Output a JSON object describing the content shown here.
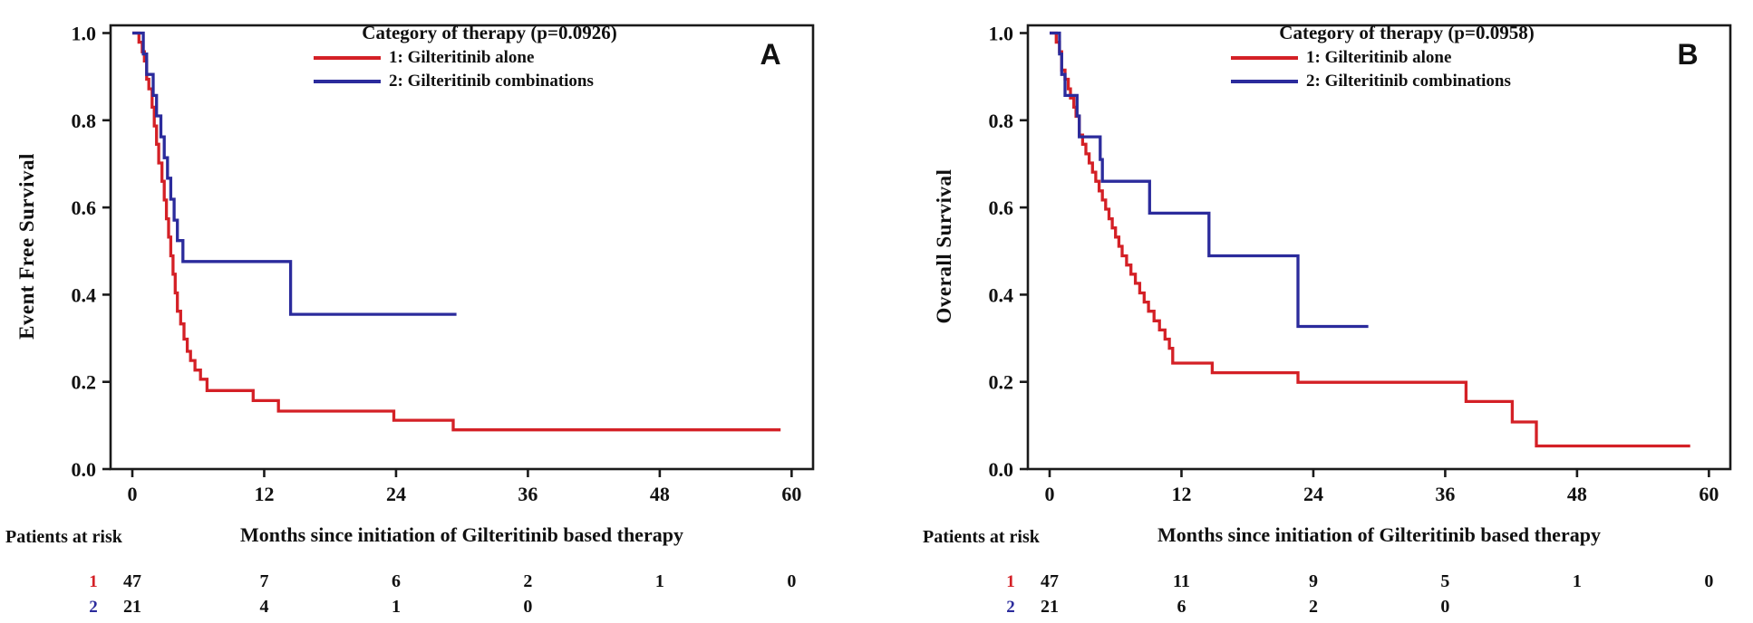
{
  "figure": {
    "background": "#ffffff",
    "axis_color": "#1a1a1a",
    "text_color": "#111111"
  },
  "chart_data": {
    "type": "line",
    "subtype": "kaplan-meier-step",
    "xlabel_shared": "Months since initiation of Gilteritinib based therapy",
    "charts": [
      {
        "id": "A",
        "panel_label": "A",
        "title": "Category of therapy  (p=0.0926)",
        "ylabel": "Event Free Survival",
        "xlabel": "Months since initiation of Gilteritinib based therapy",
        "xticks": [
          0,
          12,
          24,
          36,
          48,
          60
        ],
        "yticks": [
          0.0,
          0.2,
          0.4,
          0.6,
          0.8,
          1.0
        ],
        "xlim": [
          -2,
          62
        ],
        "ylim": [
          0.0,
          1.0
        ],
        "grid": false,
        "legend_position": "top-center-inside",
        "series": [
          {
            "name": "1: Gilteritinib alone",
            "color": "#d42026",
            "steps": [
              [
                0,
                1.0
              ],
              [
                0.6,
                0.979
              ],
              [
                0.9,
                0.957
              ],
              [
                1.1,
                0.936
              ],
              [
                1.3,
                0.894
              ],
              [
                1.5,
                0.872
              ],
              [
                1.8,
                0.83
              ],
              [
                2.0,
                0.787
              ],
              [
                2.2,
                0.745
              ],
              [
                2.4,
                0.702
              ],
              [
                2.7,
                0.66
              ],
              [
                2.9,
                0.617
              ],
              [
                3.1,
                0.574
              ],
              [
                3.3,
                0.532
              ],
              [
                3.5,
                0.489
              ],
              [
                3.7,
                0.447
              ],
              [
                3.9,
                0.404
              ],
              [
                4.1,
                0.362
              ],
              [
                4.4,
                0.333
              ],
              [
                4.7,
                0.298
              ],
              [
                5.0,
                0.27
              ],
              [
                5.3,
                0.249
              ],
              [
                5.7,
                0.227
              ],
              [
                6.2,
                0.206
              ],
              [
                6.8,
                0.18
              ],
              [
                11.0,
                0.157
              ],
              [
                13.3,
                0.133
              ],
              [
                23.8,
                0.112
              ],
              [
                29.2,
                0.09
              ],
              [
                59.0,
                0.09
              ]
            ]
          },
          {
            "name": "2: Gilteritinib combinations",
            "color": "#2b2b9c",
            "steps": [
              [
                0,
                1.0
              ],
              [
                1.0,
                0.952
              ],
              [
                1.3,
                0.905
              ],
              [
                1.9,
                0.857
              ],
              [
                2.2,
                0.81
              ],
              [
                2.6,
                0.762
              ],
              [
                2.9,
                0.714
              ],
              [
                3.2,
                0.667
              ],
              [
                3.5,
                0.619
              ],
              [
                3.8,
                0.571
              ],
              [
                4.1,
                0.524
              ],
              [
                4.6,
                0.476
              ],
              [
                14.4,
                0.355
              ],
              [
                29.5,
                0.355
              ]
            ]
          }
        ],
        "risk_table": {
          "label": "Patients at risk",
          "months": [
            0,
            12,
            24,
            36,
            48,
            60
          ],
          "rows": [
            {
              "marker": "1",
              "color": "#d42026",
              "values": [
                "47",
                "7",
                "6",
                "2",
                "1",
                "0"
              ]
            },
            {
              "marker": "2",
              "color": "#2b2b9c",
              "values": [
                "21",
                "4",
                "1",
                "0"
              ]
            }
          ]
        }
      },
      {
        "id": "B",
        "panel_label": "B",
        "title": "Category of therapy  (p=0.0958)",
        "ylabel": "Overall Survival",
        "xlabel": "Months since initiation of Gilteritinib based therapy",
        "xticks": [
          0,
          12,
          24,
          36,
          48,
          60
        ],
        "yticks": [
          0.0,
          0.2,
          0.4,
          0.6,
          0.8,
          1.0
        ],
        "xlim": [
          -2,
          62
        ],
        "ylim": [
          0.0,
          1.0
        ],
        "grid": false,
        "legend_position": "top-center-inside",
        "series": [
          {
            "name": "1: Gilteritinib alone",
            "color": "#d42026",
            "steps": [
              [
                0,
                1.0
              ],
              [
                0.6,
                0.979
              ],
              [
                0.9,
                0.957
              ],
              [
                1.1,
                0.915
              ],
              [
                1.4,
                0.894
              ],
              [
                1.7,
                0.872
              ],
              [
                1.9,
                0.851
              ],
              [
                2.2,
                0.83
              ],
              [
                2.4,
                0.809
              ],
              [
                2.7,
                0.766
              ],
              [
                3.0,
                0.745
              ],
              [
                3.3,
                0.723
              ],
              [
                3.6,
                0.702
              ],
              [
                3.9,
                0.681
              ],
              [
                4.2,
                0.66
              ],
              [
                4.5,
                0.638
              ],
              [
                4.8,
                0.617
              ],
              [
                5.1,
                0.596
              ],
              [
                5.4,
                0.574
              ],
              [
                5.7,
                0.553
              ],
              [
                6.0,
                0.532
              ],
              [
                6.3,
                0.511
              ],
              [
                6.6,
                0.489
              ],
              [
                7.0,
                0.468
              ],
              [
                7.4,
                0.447
              ],
              [
                7.8,
                0.426
              ],
              [
                8.2,
                0.404
              ],
              [
                8.6,
                0.383
              ],
              [
                9.0,
                0.362
              ],
              [
                9.5,
                0.34
              ],
              [
                10.0,
                0.319
              ],
              [
                10.5,
                0.298
              ],
              [
                10.9,
                0.277
              ],
              [
                11.2,
                0.243
              ],
              [
                14.8,
                0.221
              ],
              [
                22.6,
                0.199
              ],
              [
                37.9,
                0.155
              ],
              [
                42.1,
                0.108
              ],
              [
                44.3,
                0.053
              ],
              [
                58.3,
                0.053
              ]
            ]
          },
          {
            "name": "2: Gilteritinib combinations",
            "color": "#2b2b9c",
            "steps": [
              [
                0,
                1.0
              ],
              [
                0.9,
                0.952
              ],
              [
                1.1,
                0.905
              ],
              [
                1.4,
                0.857
              ],
              [
                2.5,
                0.81
              ],
              [
                2.7,
                0.762
              ],
              [
                4.6,
                0.71
              ],
              [
                4.8,
                0.66
              ],
              [
                9.1,
                0.587
              ],
              [
                14.5,
                0.489
              ],
              [
                22.6,
                0.327
              ],
              [
                29.0,
                0.327
              ]
            ]
          }
        ],
        "risk_table": {
          "label": "Patients at risk",
          "months": [
            0,
            12,
            24,
            36,
            48,
            60
          ],
          "rows": [
            {
              "marker": "1",
              "color": "#d42026",
              "values": [
                "47",
                "11",
                "9",
                "5",
                "1",
                "0"
              ]
            },
            {
              "marker": "2",
              "color": "#2b2b9c",
              "values": [
                "21",
                "6",
                "2",
                "0"
              ]
            }
          ]
        }
      }
    ]
  }
}
